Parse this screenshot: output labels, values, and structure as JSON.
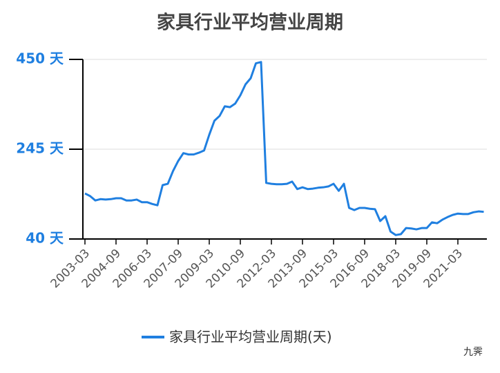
{
  "chart_data": {
    "type": "line",
    "title": "家具行业平均营业周期",
    "categories": [
      "2003-03",
      null,
      null,
      null,
      null,
      null,
      "2004-09",
      null,
      null,
      null,
      null,
      null,
      "2006-03",
      null,
      null,
      null,
      null,
      null,
      "2007-09",
      null,
      null,
      null,
      null,
      null,
      "2009-03",
      null,
      null,
      null,
      null,
      null,
      "2010-09",
      null,
      null,
      null,
      null,
      null,
      "2012-03",
      null,
      null,
      null,
      null,
      null,
      "2013-09",
      null,
      null,
      null,
      null,
      null,
      "2015-03",
      null,
      null,
      null,
      null,
      null,
      "2016-09",
      null,
      null,
      null,
      null,
      null,
      "2018-03",
      null,
      null,
      null,
      null,
      null,
      "2019-09",
      null,
      null,
      null,
      null,
      null,
      "2021-03",
      null,
      null,
      null,
      null,
      null
    ],
    "series": [
      {
        "name": "家具行业平均营业周期(天)",
        "color": "#1f7fe0",
        "values": [
          144,
          138,
          128,
          131,
          130,
          131,
          133,
          133,
          128,
          128,
          130,
          124,
          124,
          120,
          117,
          163,
          166,
          195,
          218,
          236,
          233,
          233,
          237,
          242,
          278,
          310,
          321,
          343,
          341,
          349,
          368,
          393,
          407,
          441,
          444,
          168,
          166,
          165,
          165,
          166,
          171,
          154,
          158,
          154,
          155,
          157,
          158,
          160,
          166,
          150,
          166,
          111,
          106,
          111,
          111,
          109,
          108,
          81,
          92,
          57,
          49,
          51,
          65,
          64,
          62,
          65,
          65,
          78,
          76,
          84,
          90,
          95,
          98,
          97,
          97,
          101,
          103,
          102
        ]
      }
    ],
    "ylim": [
      40,
      450
    ],
    "yticks": [
      {
        "value": 40,
        "label": "40 天"
      },
      {
        "value": 245,
        "label": "245 天"
      },
      {
        "value": 450,
        "label": "450 天"
      }
    ],
    "grid": true,
    "legend": "bottom",
    "watermark": "九霁"
  }
}
